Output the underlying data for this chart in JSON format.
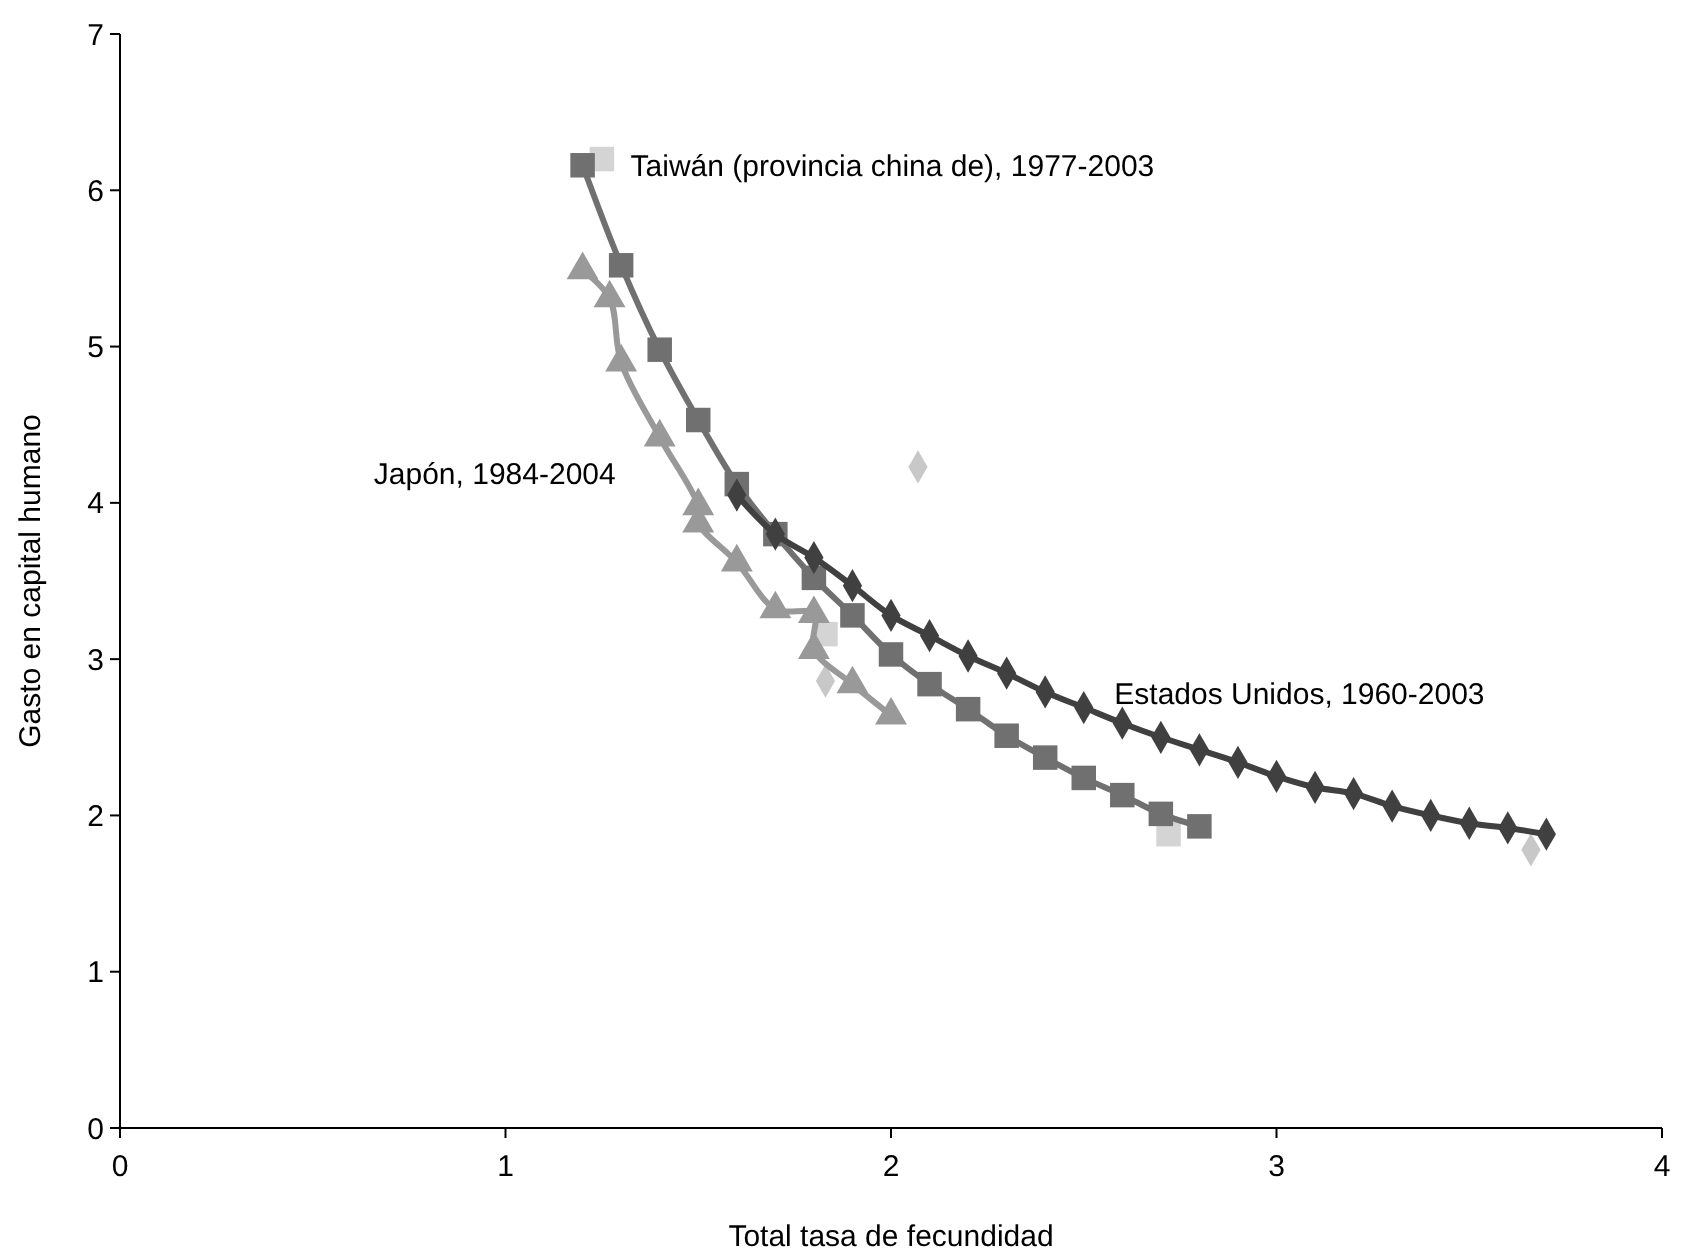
{
  "chart_data": {
    "type": "line",
    "xlabel": "Total tasa de fecundidad",
    "ylabel": "Gasto en capital humano",
    "xlim": [
      0,
      4
    ],
    "xticks": [
      0,
      1,
      2,
      3,
      4
    ],
    "ylim": [
      0,
      7
    ],
    "yticks": [
      0,
      1,
      2,
      3,
      4,
      5,
      6,
      7
    ],
    "grid": false,
    "legend": false,
    "series": [
      {
        "type": "scatter",
        "marker": "square",
        "color": "#d4d4d4",
        "x": [
          1.25,
          1.83,
          2.72
        ],
        "values": [
          6.2,
          3.16,
          1.88
        ]
      },
      {
        "type": "scatter",
        "marker": "diamond",
        "color": "#c8c8c8",
        "x": [
          2.07,
          1.83,
          3.66
        ],
        "values": [
          4.23,
          2.86,
          1.78
        ]
      },
      {
        "name": "Japón, 1984-2004",
        "marker": "triangle",
        "color": "#999999",
        "x": [
          1.2,
          1.27,
          1.3,
          1.4,
          1.5,
          1.5,
          1.6,
          1.7,
          1.8,
          1.8,
          1.9,
          2.0
        ],
        "values": [
          5.49,
          5.31,
          4.9,
          4.42,
          3.98,
          3.87,
          3.62,
          3.32,
          3.29,
          3.06,
          2.84,
          2.64
        ]
      },
      {
        "name": "Taiwán (provincia china de), 1977-2003",
        "marker": "square",
        "color": "#707070",
        "x": [
          1.2,
          1.3,
          1.4,
          1.5,
          1.6,
          1.7,
          1.8,
          1.9,
          2.0,
          2.1,
          2.2,
          2.3,
          2.4,
          2.5,
          2.6,
          2.7,
          2.8
        ],
        "values": [
          6.16,
          5.52,
          4.98,
          4.53,
          4.12,
          3.8,
          3.52,
          3.28,
          3.03,
          2.84,
          2.68,
          2.51,
          2.37,
          2.24,
          2.13,
          2.01,
          1.93
        ]
      },
      {
        "name": "Estados Unidos, 1960-2003",
        "marker": "diamond",
        "color": "#404040",
        "x": [
          1.6,
          1.7,
          1.8,
          1.9,
          2.0,
          2.1,
          2.2,
          2.3,
          2.4,
          2.5,
          2.6,
          2.7,
          2.8,
          2.9,
          3.0,
          3.1,
          3.2,
          3.3,
          3.4,
          3.5,
          3.6,
          3.7
        ],
        "values": [
          4.05,
          3.8,
          3.65,
          3.47,
          3.28,
          3.15,
          3.02,
          2.91,
          2.79,
          2.69,
          2.59,
          2.5,
          2.42,
          2.34,
          2.25,
          2.18,
          2.14,
          2.06,
          2.0,
          1.95,
          1.92,
          1.88
        ]
      }
    ]
  }
}
